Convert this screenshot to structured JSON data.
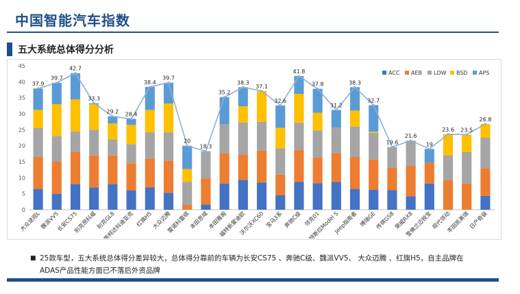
{
  "page": {
    "title": "中国智能汽车指数",
    "section_title": "五大系统总体得分分析",
    "note": "25款车型，五大系统总体得分差异较大，总体得分靠前的车辆为长安CS75 、奔驰C级、魏派VV5、 大众迈腾 、红旗H5，自主品牌在ADAS产品性能方面已不落后外资品牌",
    "bullet": "■"
  },
  "colors": {
    "ACC": "#4472c4",
    "AEB": "#ed7d31",
    "LDW": "#a5a5a5",
    "BSD": "#ffc000",
    "APS": "#5b9bd5",
    "total_line": "#8eaed8",
    "title_blue": "#1f4e8c"
  },
  "chart_data": {
    "type": "bar",
    "stacked": true,
    "title": "",
    "xlabel": "",
    "ylabel": "",
    "ylim": [
      0,
      45
    ],
    "yticks": [
      0,
      5,
      10,
      15,
      20,
      25,
      30,
      35,
      40,
      45
    ],
    "grid": false,
    "legend_position": "top-right",
    "categories": [
      "大众途观L",
      "魏派VV5",
      "长安CS75",
      "别克昂科威",
      "别克GL8",
      "斯柯达科迪亚克",
      "红旗H5",
      "大众迈腾",
      "雷诺科雷缤",
      "本田思域",
      "本田雅阁",
      "福特新蒙迪欧",
      "沃尔沃XC60",
      "宝马3系",
      "奔驰C级",
      "领克01",
      "特斯拉Model S",
      "Jeep指南者",
      "博瑞GE",
      "传祺GS8",
      "荣威RX8",
      "雪佛兰迈锐宝",
      "现代领动",
      "丰田凯美瑞",
      "日产奇骏"
    ],
    "series": [
      {
        "name": "ACC",
        "values": [
          6.5,
          5.0,
          8.0,
          7.0,
          8.0,
          6.0,
          7.0,
          5.3,
          0.0,
          1.6,
          8.2,
          9.3,
          8.5,
          4.5,
          8.7,
          8.3,
          8.7,
          6.5,
          6.2,
          6.1,
          4.2,
          8.2,
          0.0,
          0.0,
          4.3
        ]
      },
      {
        "name": "AEB",
        "values": [
          10.0,
          10.0,
          10.0,
          10.0,
          9.0,
          8.5,
          9.0,
          10.0,
          1.5,
          8.2,
          9.5,
          8.0,
          10.0,
          6.5,
          10.0,
          8.0,
          9.0,
          10.0,
          9.5,
          7.0,
          9.5,
          6.5,
          9.2,
          8.2,
          8.7
        ]
      },
      {
        "name": "LDW",
        "values": [
          9.0,
          8.0,
          6.5,
          8.0,
          5.0,
          6.0,
          8.2,
          8.9,
          7.2,
          8.5,
          9.0,
          10.0,
          9.0,
          8.2,
          8.5,
          8.5,
          8.0,
          9.5,
          8.3,
          6.5,
          7.9,
          0.0,
          7.8,
          9.8,
          9.5
        ]
      },
      {
        "name": "BSD",
        "values": [
          5.7,
          10.0,
          10.0,
          8.0,
          5.0,
          6.0,
          7.0,
          9.0,
          4.0,
          0.0,
          0.0,
          5.0,
          9.6,
          6.4,
          9.0,
          5.5,
          0.0,
          5.0,
          0.4,
          0.0,
          0.0,
          0.0,
          6.6,
          5.5,
          4.3
        ]
      },
      {
        "name": "APS",
        "values": [
          6.7,
          6.7,
          8.2,
          0.3,
          2.2,
          1.9,
          7.2,
          6.5,
          7.3,
          0.0,
          8.5,
          6.0,
          0.0,
          7.0,
          5.6,
          7.5,
          5.5,
          7.3,
          8.3,
          0.0,
          0.0,
          4.3,
          0.0,
          0.0,
          0.0
        ]
      }
    ],
    "totals": [
      37.9,
      39.7,
      42.7,
      33.3,
      29.2,
      28.4,
      38.4,
      39.7,
      20.0,
      18.3,
      35.2,
      38.3,
      37.1,
      32.6,
      41.8,
      37.8,
      31.2,
      38.3,
      32.7,
      19.6,
      21.6,
      19.0,
      23.6,
      23.5,
      26.8
    ],
    "total_labels": [
      "37.9",
      "39.7",
      "42.7",
      "33.3",
      "29.2",
      "28.4",
      "38.4",
      "39.7",
      "20",
      "18.3",
      "35.2",
      "38.3",
      "37.1",
      "32.6",
      "41.8",
      "37.8",
      "31.2",
      "38.3",
      "32.7",
      "19.6",
      "21.6",
      "19",
      "23.6",
      "23.5",
      "26.8"
    ]
  }
}
